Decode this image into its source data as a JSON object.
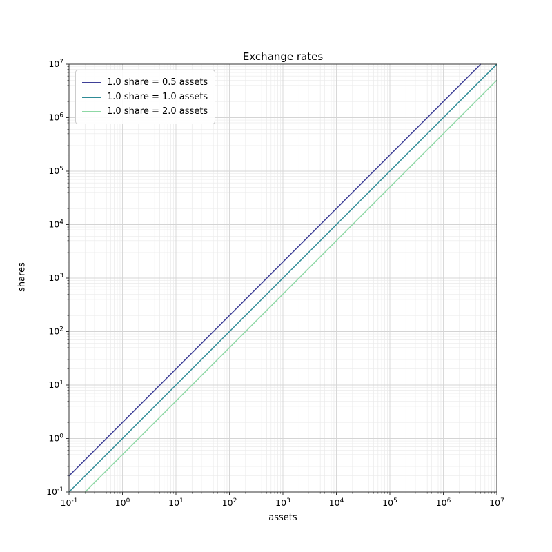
{
  "title": "Exchange rates",
  "chart_data": {
    "type": "line",
    "title": "Exchange rates",
    "xlabel": "assets",
    "ylabel": "shares",
    "x_scale": "log",
    "y_scale": "log",
    "xlim": [
      0.1,
      10000000
    ],
    "ylim": [
      0.1,
      10000000
    ],
    "grid": true,
    "grid_minor": true,
    "legend_position": "upper left",
    "x_tick_exponents": [
      -1,
      0,
      1,
      2,
      3,
      4,
      5,
      6,
      7
    ],
    "y_tick_exponents": [
      -1,
      0,
      1,
      2,
      3,
      4,
      5,
      6,
      7
    ],
    "x": [
      0.1,
      1,
      10,
      100,
      1000,
      10000,
      100000,
      1000000,
      10000000
    ],
    "series": [
      {
        "name": "1.0 share = 0.5 assets",
        "assets_per_share": 0.5,
        "color": "#3e3f97",
        "values": [
          0.2,
          2,
          20,
          200,
          2000,
          20000,
          200000,
          2000000,
          20000000
        ]
      },
      {
        "name": "1.0 share = 1.0 assets",
        "assets_per_share": 1.0,
        "color": "#2e8b96",
        "values": [
          0.1,
          1,
          10,
          100,
          1000,
          10000,
          100000,
          1000000,
          10000000
        ]
      },
      {
        "name": "1.0 share = 2.0 assets",
        "assets_per_share": 2.0,
        "color": "#8ed8a5",
        "values": [
          0.05,
          0.5,
          5,
          50,
          500,
          5000,
          50000,
          500000,
          5000000
        ]
      }
    ],
    "colors": {
      "major_grid": "#d4d4d4",
      "minor_grid": "#eaeaea",
      "frame": "#333333",
      "tick": "#333333",
      "text": "#000000"
    }
  }
}
